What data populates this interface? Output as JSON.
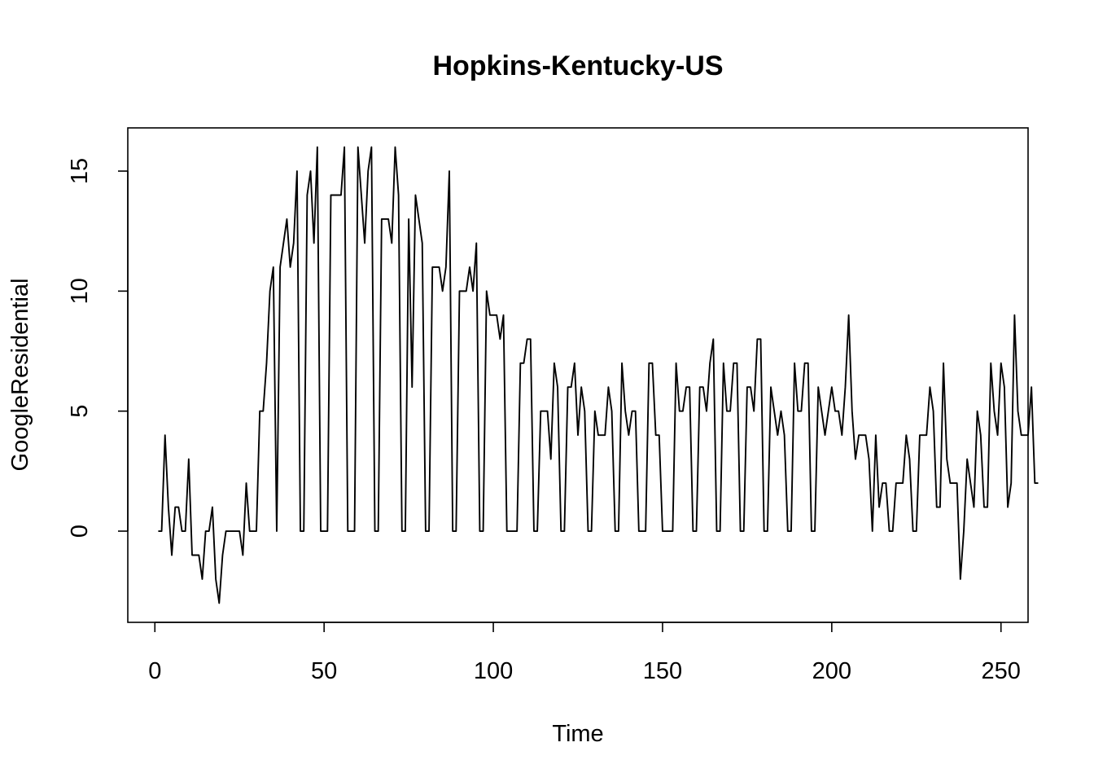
{
  "chart_data": {
    "type": "line",
    "title": "Hopkins-Kentucky-US",
    "xlabel": "Time",
    "ylabel": "GoogleResidential",
    "xlim": [
      -8,
      258
    ],
    "ylim": [
      -3.8,
      16.8
    ],
    "x_ticks": [
      0,
      50,
      100,
      150,
      200,
      250
    ],
    "y_ticks": [
      0,
      5,
      10,
      15
    ],
    "x_tick_labels": [
      "0",
      "50",
      "100",
      "150",
      "200",
      "250"
    ],
    "y_tick_labels": [
      "0",
      "5",
      "10",
      "15"
    ],
    "grid": false,
    "line_color": "#000000",
    "series": [
      {
        "x_start": 1,
        "values": [
          0,
          0,
          4,
          1,
          -1,
          1,
          1,
          0,
          0,
          3,
          -1,
          -1,
          -1,
          -2,
          0,
          0,
          1,
          -2,
          -3,
          -1,
          0,
          0,
          0,
          0,
          0,
          -1,
          2,
          0,
          0,
          0,
          5,
          5,
          7,
          10,
          11,
          0,
          11,
          12,
          13,
          11,
          12,
          15,
          0,
          0,
          14,
          15,
          12,
          16,
          0,
          0,
          0,
          14,
          14,
          14,
          14,
          16,
          0,
          0,
          0,
          16,
          14,
          12,
          15,
          16,
          0,
          0,
          13,
          13,
          13,
          12,
          16,
          14,
          0,
          0,
          13,
          6,
          14,
          13,
          12,
          0,
          0,
          11,
          11,
          11,
          10,
          11,
          15,
          0,
          0,
          10,
          10,
          10,
          11,
          10,
          12,
          0,
          0,
          10,
          9,
          9,
          9,
          8,
          9,
          0,
          0,
          0,
          0,
          7,
          7,
          8,
          8,
          0,
          0,
          5,
          5,
          5,
          3,
          7,
          6,
          0,
          0,
          6,
          6,
          7,
          4,
          6,
          5,
          0,
          0,
          5,
          4,
          4,
          4,
          6,
          5,
          0,
          0,
          7,
          5,
          4,
          5,
          5,
          0,
          0,
          0,
          7,
          7,
          4,
          4,
          0,
          0,
          0,
          0,
          7,
          5,
          5,
          6,
          6,
          0,
          0,
          6,
          6,
          5,
          7,
          8,
          0,
          0,
          7,
          5,
          5,
          7,
          7,
          0,
          0,
          6,
          6,
          5,
          8,
          8,
          0,
          0,
          6,
          5,
          4,
          5,
          4,
          0,
          0,
          7,
          5,
          5,
          7,
          7,
          0,
          0,
          6,
          5,
          4,
          5,
          6,
          5,
          5,
          4,
          6,
          9,
          5,
          3,
          4,
          4,
          4,
          3,
          0,
          4,
          1,
          2,
          2,
          0,
          0,
          2,
          2,
          2,
          4,
          3,
          0,
          0,
          4,
          4,
          4,
          6,
          5,
          1,
          1,
          7,
          3,
          2,
          2,
          2,
          -2,
          0,
          3,
          2,
          1,
          5,
          4,
          1,
          1,
          7,
          5,
          4,
          7,
          6,
          1,
          2,
          9,
          5,
          4,
          4,
          4,
          6,
          2,
          2
        ]
      }
    ]
  }
}
